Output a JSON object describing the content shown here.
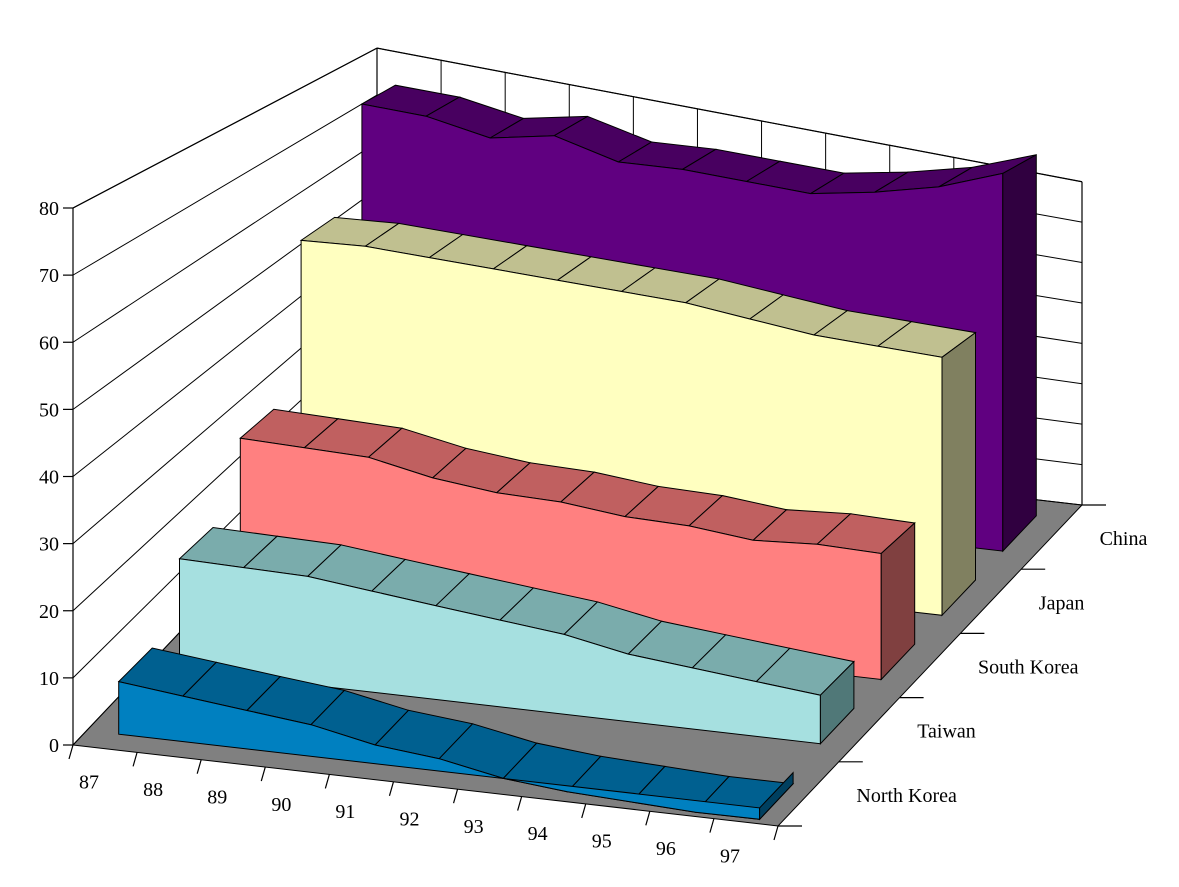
{
  "chart_data": {
    "type": "area",
    "variant": "3d-ribbon",
    "title": "",
    "xlabel": "",
    "ylabel": "",
    "categories": [
      "87",
      "88",
      "89",
      "90",
      "91",
      "92",
      "93",
      "94",
      "95",
      "96",
      "97"
    ],
    "ylim": [
      0,
      80
    ],
    "yticks": [
      "0",
      "10",
      "20",
      "30",
      "40",
      "50",
      "60",
      "70",
      "80"
    ],
    "grid": true,
    "series": [
      {
        "name": "North Korea",
        "color": "#0080c0",
        "top_color": "#006090",
        "side_color": "#004060",
        "values": [
          8,
          7,
          6,
          5,
          3,
          2,
          0,
          -1,
          -1.5,
          -2,
          -2
        ]
      },
      {
        "name": "Taiwan",
        "color": "#a6e0e0",
        "top_color": "#7aacac",
        "side_color": "#507878",
        "values": [
          18,
          18,
          18,
          17,
          16,
          15,
          14,
          12,
          11,
          10,
          9
        ]
      },
      {
        "name": "South Korea",
        "color": "#ff8080",
        "top_color": "#c06060",
        "side_color": "#804040",
        "values": [
          29,
          29,
          29,
          27,
          26,
          26,
          25,
          25,
          24,
          25,
          25
        ]
      },
      {
        "name": "Japan",
        "color": "#ffffc0",
        "top_color": "#c0c090",
        "side_color": "#808060",
        "values": [
          56,
          57,
          57,
          57,
          57,
          57,
          57,
          56,
          55,
          55,
          55
        ]
      },
      {
        "name": "China",
        "color": "#600080",
        "top_color": "#480060",
        "side_color": "#300040",
        "values": [
          75,
          75,
          73,
          76,
          73,
          74,
          74,
          74,
          77,
          81,
          87
        ]
      }
    ]
  }
}
